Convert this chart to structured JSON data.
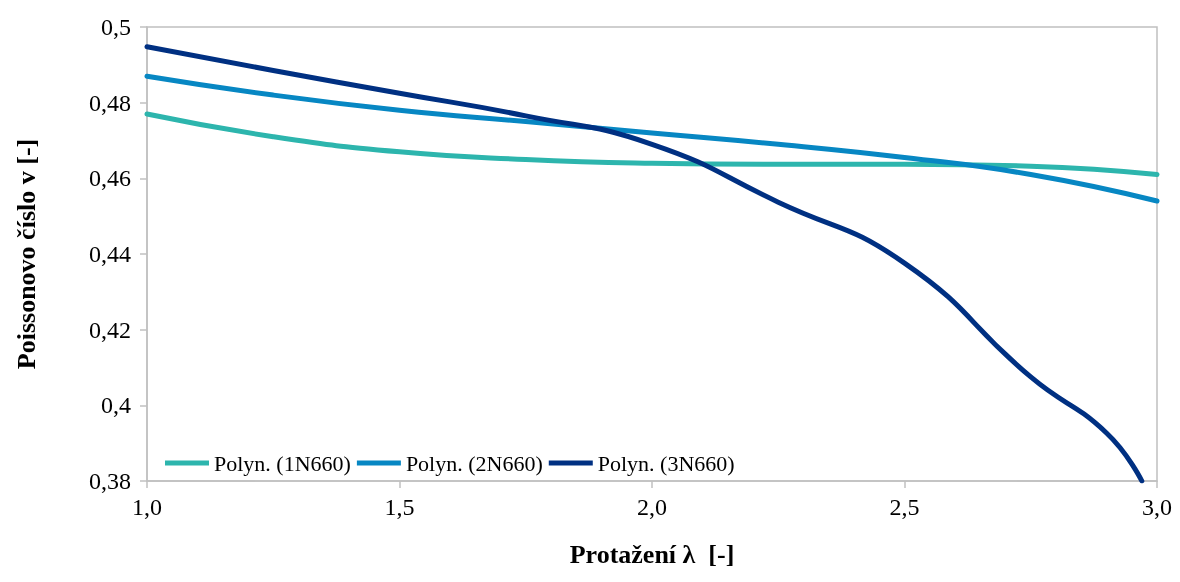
{
  "chart_data": {
    "type": "line",
    "xlabel": "Protažení λ  [-]",
    "ylabel": "Poissonovo číslo v [-]",
    "xlim": [
      1.0,
      3.0
    ],
    "ylim": [
      0.38,
      0.5
    ],
    "xticks": [
      {
        "value": 1.0,
        "label": "1,0"
      },
      {
        "value": 1.5,
        "label": "1,5"
      },
      {
        "value": 2.0,
        "label": "2,0"
      },
      {
        "value": 2.5,
        "label": "2,5"
      },
      {
        "value": 3.0,
        "label": "3,0"
      }
    ],
    "yticks": [
      {
        "value": 0.38,
        "label": "0,38"
      },
      {
        "value": 0.4,
        "label": "0,4"
      },
      {
        "value": 0.42,
        "label": "0,42"
      },
      {
        "value": 0.44,
        "label": "0,44"
      },
      {
        "value": 0.46,
        "label": "0,46"
      },
      {
        "value": 0.48,
        "label": "0,48"
      },
      {
        "value": 0.5,
        "label": "0,5"
      }
    ],
    "grid": false,
    "legend": "bottom left",
    "marker": "none",
    "line_style": "solid",
    "series": [
      {
        "name": "Polyn. (1N660)",
        "color": "#2db5ad",
        "x": [
          1.0,
          1.25,
          1.5,
          1.75,
          2.0,
          2.25,
          2.5,
          2.75,
          3.0
        ],
        "values": [
          0.477,
          0.471,
          0.467,
          0.465,
          0.464,
          0.4637,
          0.4637,
          0.4632,
          0.461
        ]
      },
      {
        "name": "Polyn. (2N660)",
        "color": "#0787c3",
        "x": [
          1.0,
          1.25,
          1.5,
          1.75,
          2.0,
          2.25,
          2.5,
          2.75,
          3.0
        ],
        "values": [
          0.487,
          0.482,
          0.478,
          0.475,
          0.472,
          0.469,
          0.4655,
          0.461,
          0.454
        ]
      },
      {
        "name": "Polyn. (3N660)",
        "color": "#003082",
        "x": [
          1.0,
          1.25,
          1.5,
          1.75,
          2.0,
          2.25,
          2.5,
          2.75,
          2.9,
          2.97
        ],
        "values": [
          0.4948,
          0.4885,
          0.4825,
          0.4765,
          0.469,
          0.4537,
          0.4376,
          0.4075,
          0.3927,
          0.38
        ]
      }
    ]
  }
}
